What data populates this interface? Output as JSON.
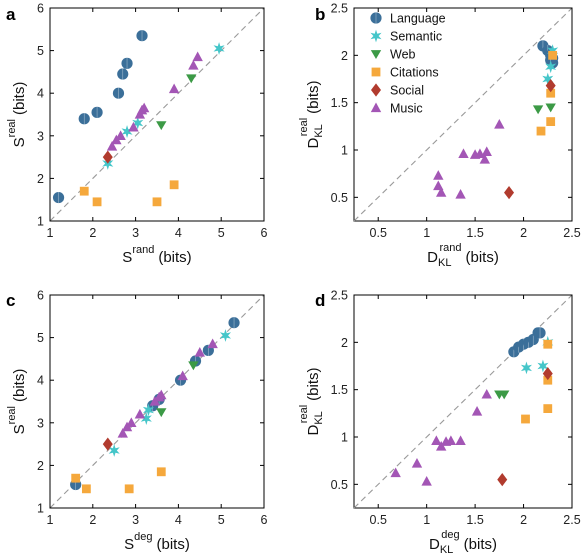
{
  "colors": {
    "Language": "#3b6f99",
    "Semantic": "#45c6c9",
    "Web": "#3c9a46",
    "Citations": "#f5a83c",
    "Social": "#b13b2e",
    "Music": "#a356b5"
  },
  "legend": [
    "Language",
    "Semantic",
    "Web",
    "Citations",
    "Social",
    "Music"
  ],
  "chart_data": [
    {
      "panel": "a",
      "type": "scatter",
      "xlabel": {
        "main": "S",
        "sup": "rand",
        "unit": "(bits)"
      },
      "ylabel": {
        "main": "S",
        "sup": "real",
        "unit": "(bits)"
      },
      "xlim": [
        1,
        6
      ],
      "ylim": [
        1,
        6
      ],
      "xticks": [
        "1",
        "2",
        "3",
        "4",
        "5",
        "6"
      ],
      "yticks": [
        "1",
        "2",
        "3",
        "4",
        "5",
        "6"
      ],
      "diagonal": true,
      "series": [
        {
          "name": "Language",
          "x": [
            1.2,
            1.8,
            2.1,
            2.6,
            2.7,
            2.8,
            3.15
          ],
          "y": [
            1.55,
            3.4,
            3.55,
            4.0,
            4.45,
            4.7,
            5.35
          ]
        },
        {
          "name": "Semantic",
          "x": [
            2.35,
            2.8,
            3.05,
            4.95
          ],
          "y": [
            2.35,
            3.1,
            3.3,
            5.05
          ]
        },
        {
          "name": "Web",
          "x": [
            3.6,
            4.3
          ],
          "y": [
            3.25,
            4.35
          ]
        },
        {
          "name": "Citations",
          "x": [
            1.8,
            2.1,
            3.5,
            3.9
          ],
          "y": [
            1.7,
            1.45,
            1.45,
            1.85
          ]
        },
        {
          "name": "Social",
          "x": [
            2.35
          ],
          "y": [
            2.5
          ]
        },
        {
          "name": "Music",
          "x": [
            2.45,
            2.55,
            2.65,
            2.95,
            3.1,
            3.15,
            3.2,
            3.9,
            4.35,
            4.45
          ],
          "y": [
            2.75,
            2.9,
            3.0,
            3.2,
            3.5,
            3.6,
            3.65,
            4.1,
            4.65,
            4.85
          ]
        }
      ]
    },
    {
      "panel": "b",
      "type": "scatter",
      "xlabel": {
        "main": "D",
        "sub": "KL",
        "sup": "rand",
        "unit": "(bits)"
      },
      "ylabel": {
        "main": "D",
        "sub": "KL",
        "sup": "real",
        "unit": "(bits)"
      },
      "xlim": [
        0.25,
        2.5
      ],
      "ylim": [
        0.25,
        2.5
      ],
      "xticks": [
        "0.5",
        "1",
        "1.5",
        "2",
        "2.5"
      ],
      "yticks": [
        "0.5",
        "1",
        "1.5",
        "2",
        "2.5"
      ],
      "diagonal": true,
      "legend_position": "top-left",
      "series": [
        {
          "name": "Language",
          "x": [
            2.2,
            2.25,
            2.28,
            2.3,
            2.3,
            2.28
          ],
          "y": [
            2.1,
            2.05,
            2.0,
            1.97,
            1.92,
            1.95
          ]
        },
        {
          "name": "Semantic",
          "x": [
            2.25,
            2.28,
            2.3
          ],
          "y": [
            1.75,
            1.88,
            2.05
          ]
        },
        {
          "name": "Web",
          "x": [
            2.15,
            2.28
          ],
          "y": [
            1.43,
            1.45
          ]
        },
        {
          "name": "Citations",
          "x": [
            2.18,
            2.28,
            2.28,
            2.3
          ],
          "y": [
            1.2,
            1.3,
            1.6,
            2.0
          ]
        },
        {
          "name": "Social",
          "x": [
            1.85,
            2.28
          ],
          "y": [
            0.55,
            1.68
          ]
        },
        {
          "name": "Music",
          "x": [
            1.12,
            1.12,
            1.15,
            1.35,
            1.38,
            1.5,
            1.55,
            1.6,
            1.62,
            1.75
          ],
          "y": [
            0.73,
            0.62,
            0.55,
            0.53,
            0.96,
            0.95,
            0.96,
            0.9,
            0.98,
            1.27
          ]
        }
      ]
    },
    {
      "panel": "c",
      "type": "scatter",
      "xlabel": {
        "main": "S",
        "sup": "deg",
        "unit": "(bits)"
      },
      "ylabel": {
        "main": "S",
        "sup": "real",
        "unit": "(bits)"
      },
      "xlim": [
        1,
        6
      ],
      "ylim": [
        1,
        6
      ],
      "xticks": [
        "1",
        "2",
        "3",
        "4",
        "5",
        "6"
      ],
      "yticks": [
        "1",
        "2",
        "3",
        "4",
        "5",
        "6"
      ],
      "diagonal": true,
      "series": [
        {
          "name": "Language",
          "x": [
            1.6,
            3.4,
            3.55,
            4.05,
            4.4,
            4.7,
            5.3
          ],
          "y": [
            1.55,
            3.4,
            3.55,
            4.0,
            4.45,
            4.7,
            5.35
          ]
        },
        {
          "name": "Semantic",
          "x": [
            2.5,
            3.25,
            3.3,
            5.1
          ],
          "y": [
            2.35,
            3.1,
            3.3,
            5.05
          ]
        },
        {
          "name": "Web",
          "x": [
            3.6,
            4.35
          ],
          "y": [
            3.25,
            4.35
          ]
        },
        {
          "name": "Citations",
          "x": [
            1.6,
            1.85,
            2.85,
            3.6
          ],
          "y": [
            1.7,
            1.45,
            1.45,
            1.85
          ]
        },
        {
          "name": "Social",
          "x": [
            2.35
          ],
          "y": [
            2.5
          ]
        },
        {
          "name": "Music",
          "x": [
            2.7,
            2.8,
            2.9,
            3.1,
            3.45,
            3.55,
            3.6,
            4.1,
            4.5,
            4.8
          ],
          "y": [
            2.75,
            2.9,
            3.0,
            3.2,
            3.5,
            3.6,
            3.65,
            4.1,
            4.65,
            4.85
          ]
        }
      ]
    },
    {
      "panel": "d",
      "type": "scatter",
      "xlabel": {
        "main": "D",
        "sub": "KL",
        "sup": "deg",
        "unit": "(bits)"
      },
      "ylabel": {
        "main": "D",
        "sub": "KL",
        "sup": "real",
        "unit": "(bits)"
      },
      "xlim": [
        0.25,
        2.5
      ],
      "ylim": [
        0.25,
        2.5
      ],
      "xticks": [
        "0.5",
        "1",
        "1.5",
        "2",
        "2.5"
      ],
      "yticks": [
        "0.5",
        "1",
        "1.5",
        "2",
        "2.5"
      ],
      "diagonal": true,
      "series": [
        {
          "name": "Language",
          "x": [
            1.9,
            1.95,
            2.0,
            2.05,
            2.1,
            2.15,
            2.17
          ],
          "y": [
            1.9,
            1.95,
            1.98,
            2.0,
            2.03,
            2.1,
            2.1
          ]
        },
        {
          "name": "Semantic",
          "x": [
            2.03,
            2.2,
            2.25
          ],
          "y": [
            1.73,
            1.75,
            2.0
          ]
        },
        {
          "name": "Web",
          "x": [
            1.75,
            1.8
          ],
          "y": [
            1.45,
            1.45
          ]
        },
        {
          "name": "Citations",
          "x": [
            2.02,
            2.25,
            2.25,
            2.25
          ],
          "y": [
            1.19,
            1.3,
            1.6,
            1.98
          ]
        },
        {
          "name": "Social",
          "x": [
            1.78,
            2.25
          ],
          "y": [
            0.55,
            1.67
          ]
        },
        {
          "name": "Music",
          "x": [
            0.68,
            0.9,
            1.0,
            1.1,
            1.15,
            1.2,
            1.25,
            1.35,
            1.52,
            1.62
          ],
          "y": [
            0.62,
            0.72,
            0.53,
            0.96,
            0.9,
            0.95,
            0.96,
            0.96,
            1.27,
            1.45
          ]
        }
      ]
    }
  ]
}
